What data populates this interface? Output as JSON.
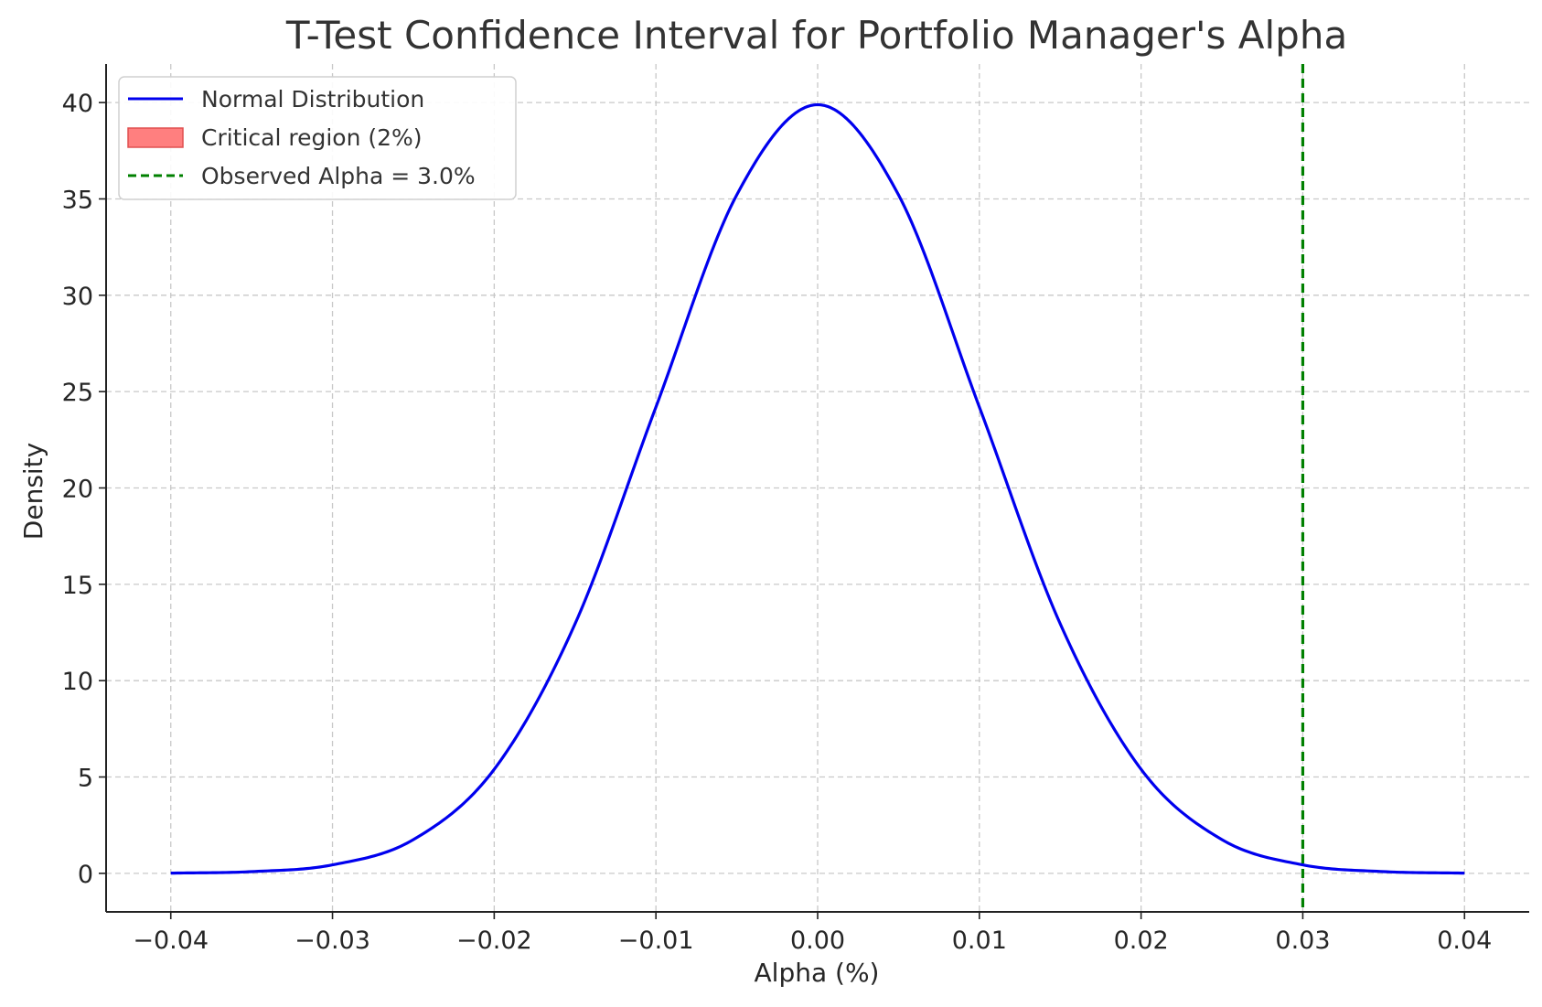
{
  "chart_data": {
    "type": "line",
    "title": "T-Test Confidence Interval for Portfolio Manager's Alpha",
    "xlabel": "Alpha (%)",
    "ylabel": "Density",
    "xlim": [
      -0.044,
      0.044
    ],
    "ylim": [
      -2,
      42
    ],
    "xticks": [
      -0.04,
      -0.03,
      -0.02,
      -0.01,
      0.0,
      0.01,
      0.02,
      0.03,
      0.04
    ],
    "xtick_labels": [
      "−0.04",
      "−0.03",
      "−0.02",
      "−0.01",
      "0.00",
      "0.01",
      "0.02",
      "0.03",
      "0.04"
    ],
    "yticks": [
      0,
      5,
      10,
      15,
      20,
      25,
      30,
      35,
      40
    ],
    "ytick_labels": [
      "0",
      "5",
      "10",
      "15",
      "20",
      "25",
      "30",
      "35",
      "40"
    ],
    "grid": true,
    "legend_position": "top-left",
    "series": [
      {
        "name": "Normal Distribution",
        "kind": "line",
        "color": "#0000ee",
        "x": [
          -0.04,
          -0.035,
          -0.03,
          -0.025,
          -0.02,
          -0.015,
          -0.01,
          -0.005,
          0.0,
          0.005,
          0.01,
          0.015,
          0.02,
          0.025,
          0.03,
          0.035,
          0.04
        ],
        "y": [
          0.01,
          0.09,
          0.44,
          1.75,
          5.4,
          12.95,
          24.2,
          35.21,
          39.89,
          35.21,
          24.2,
          12.95,
          5.4,
          1.75,
          0.44,
          0.09,
          0.01
        ]
      },
      {
        "name": "Critical region (2%)",
        "kind": "area",
        "color": "#ff7f7f",
        "edge_color": "#e05050",
        "values": []
      },
      {
        "name": "Observed Alpha = 3.0%",
        "kind": "vline",
        "color": "#008000",
        "x": 0.03
      }
    ]
  }
}
